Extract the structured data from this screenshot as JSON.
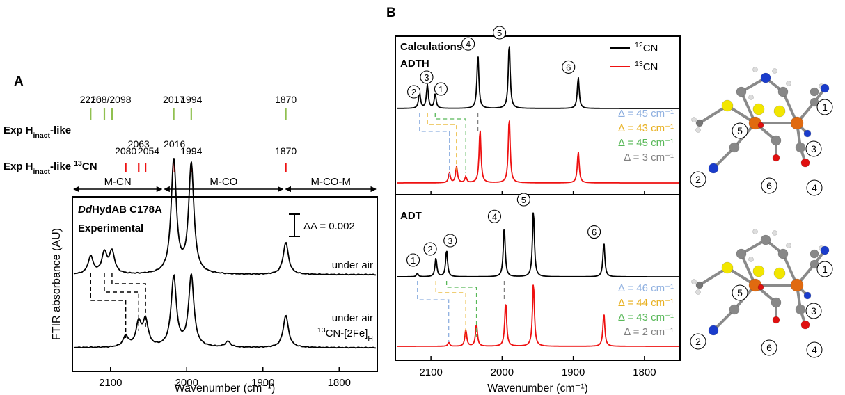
{
  "panel_labels": {
    "a": "A",
    "b": "B"
  },
  "colors": {
    "c12": "#000000",
    "c13": "#ee1111",
    "delta1": "#8fb0e0",
    "delta2": "#e8b020",
    "delta3": "#58b858",
    "delta4": "#808080",
    "tick_green": "#90c050",
    "tick_red": "#ee1111"
  },
  "chart_data": [
    {
      "type": "line",
      "id": "panelA",
      "title": "DdHydAB C178A",
      "title_italic_part": "Dd",
      "title_rest": "HydAB C178A",
      "subtitle": "Experimental",
      "xlabel": "Wavenumber (cm⁻¹)",
      "ylabel": "FTIR absorbance (AU)",
      "xlim": [
        2150,
        1750
      ],
      "xticks": [
        2100,
        2000,
        1900,
        1800
      ],
      "scale_bar": "ΔA = 0.002",
      "regions": [
        {
          "label": "M-CN",
          "from": 2150,
          "to": 2031
        },
        {
          "label": "M-CO",
          "from": 2031,
          "to": 1872
        },
        {
          "label": "M-CO-M",
          "from": 1872,
          "to": 1750
        }
      ],
      "tick_rows": [
        {
          "label_main": "Exp H",
          "label_sub": "inact",
          "label_tail": "-like",
          "label_iso": "",
          "color": "tick_green",
          "positions": [
            2126,
            2108,
            2098,
            2017,
            1994,
            1870
          ],
          "peak_labels": [
            "2126",
            "2108/2098",
            "2017",
            "1994",
            "1870"
          ]
        },
        {
          "label_main": "Exp H",
          "label_sub": "inact",
          "label_tail": "-like ",
          "label_iso": "13CN",
          "color": "tick_red",
          "positions": [
            2080,
            2063,
            2054,
            2016,
            1994,
            1870
          ],
          "peak_labels": [
            "2080",
            "2063",
            "2054",
            "2016",
            "1994",
            "1870"
          ]
        }
      ],
      "series": [
        {
          "name": "under air",
          "peaks": [
            {
              "x": 2126,
              "h": 0.12
            },
            {
              "x": 2108,
              "h": 0.14
            },
            {
              "x": 2098,
              "h": 0.15
            },
            {
              "x": 2017,
              "h": 0.78
            },
            {
              "x": 1994,
              "h": 0.75
            },
            {
              "x": 1870,
              "h": 0.22
            }
          ]
        },
        {
          "name": "under air",
          "name2_iso": "13",
          "name2_rest": "CN-[2Fe]",
          "name2_sub": "H",
          "peaks": [
            {
              "x": 2080,
              "h": 0.15
            },
            {
              "x": 2063,
              "h": 0.33
            },
            {
              "x": 2054,
              "h": 0.36
            },
            {
              "x": 2017,
              "h": 0.98
            },
            {
              "x": 1994,
              "h": 1.0
            },
            {
              "x": 1946,
              "h": 0.08
            },
            {
              "x": 1870,
              "h": 0.45
            }
          ]
        }
      ]
    },
    {
      "type": "line",
      "id": "panelB",
      "xlabel": "Wavenumber (cm⁻¹)",
      "xlim": [
        2150,
        1750
      ],
      "xticks": [
        2100,
        2000,
        1900,
        1800
      ],
      "legend": [
        {
          "iso": "12",
          "name": "CN",
          "color": "c12"
        },
        {
          "iso": "13",
          "name": "CN",
          "color": "c13"
        }
      ],
      "legend_position": "top-right",
      "subplots": [
        {
          "title": "Calculations",
          "title2": "ADTH",
          "series12": [
            {
              "x": 2116,
              "h": 0.25,
              "n": "2"
            },
            {
              "x": 2105,
              "h": 0.36,
              "n": "3"
            },
            {
              "x": 2094,
              "h": 0.22,
              "n": "1"
            },
            {
              "x": 2034,
              "h": 0.83,
              "n": "4"
            },
            {
              "x": 1990,
              "h": 1.0,
              "n": "5"
            },
            {
              "x": 1893,
              "h": 0.48,
              "n": "6"
            }
          ],
          "series13": [
            {
              "x": 2074,
              "h": 0.15
            },
            {
              "x": 2064,
              "h": 0.25
            },
            {
              "x": 2051,
              "h": 0.09
            },
            {
              "x": 2031,
              "h": 0.82
            },
            {
              "x": 1990,
              "h": 1.0
            },
            {
              "x": 1893,
              "h": 0.48
            }
          ],
          "deltas": [
            "Δ = 45 cm⁻¹",
            "Δ = 43 cm⁻¹",
            "Δ = 45 cm⁻¹",
            "Δ = 3 cm⁻¹"
          ]
        },
        {
          "title": "ADT",
          "series12": [
            {
              "x": 2119,
              "h": 0.05,
              "n": "1"
            },
            {
              "x": 2093,
              "h": 0.28,
              "n": "2"
            },
            {
              "x": 2078,
              "h": 0.4,
              "n": "3"
            },
            {
              "x": 1997,
              "h": 0.75,
              "n": "4"
            },
            {
              "x": 1956,
              "h": 1.0,
              "n": "5"
            },
            {
              "x": 1857,
              "h": 0.52,
              "n": "6"
            }
          ],
          "series13": [
            {
              "x": 2075,
              "h": 0.06
            },
            {
              "x": 2051,
              "h": 0.26
            },
            {
              "x": 2036,
              "h": 0.35
            },
            {
              "x": 1995,
              "h": 0.7
            },
            {
              "x": 1956,
              "h": 1.0
            },
            {
              "x": 1857,
              "h": 0.52
            }
          ],
          "deltas": [
            "Δ = 46 cm⁻¹",
            "Δ = 44 cm⁻¹",
            "Δ = 43 cm⁻¹",
            "Δ = 2 cm⁻¹"
          ]
        }
      ]
    }
  ],
  "structures": {
    "top_labels": [
      "1",
      "5",
      "3",
      "2",
      "6",
      "4"
    ],
    "bottom_labels": [
      "1",
      "5",
      "3",
      "2",
      "6",
      "4"
    ]
  }
}
